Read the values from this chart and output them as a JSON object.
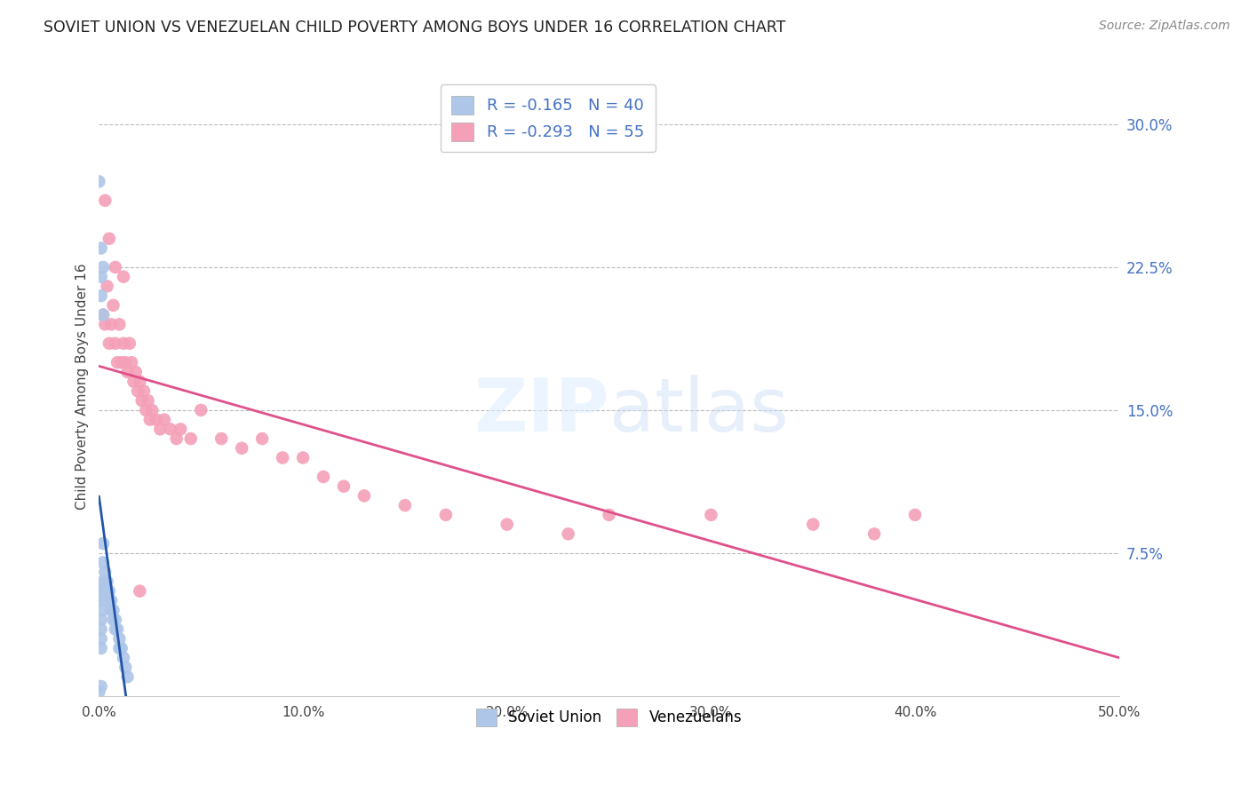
{
  "title": "SOVIET UNION VS VENEZUELAN CHILD POVERTY AMONG BOYS UNDER 16 CORRELATION CHART",
  "source": "Source: ZipAtlas.com",
  "ylabel": "Child Poverty Among Boys Under 16",
  "xlim": [
    0.0,
    0.5
  ],
  "ylim": [
    0.0,
    0.325
  ],
  "xticks": [
    0.0,
    0.1,
    0.2,
    0.3,
    0.4,
    0.5
  ],
  "xticklabels": [
    "0.0%",
    "10.0%",
    "20.0%",
    "30.0%",
    "40.0%",
    "50.0%"
  ],
  "yticks_right": [
    0.075,
    0.15,
    0.225,
    0.3
  ],
  "yticklabels_right": [
    "7.5%",
    "15.0%",
    "22.5%",
    "30.0%"
  ],
  "soviet_R": -0.165,
  "soviet_N": 40,
  "venezuelan_R": -0.293,
  "venezuelan_N": 55,
  "soviet_color": "#aec6e8",
  "venezuelan_color": "#f4a0b8",
  "soviet_line_color": "#2255aa",
  "venezuelan_line_color": "#e0508a",
  "background_color": "#ffffff",
  "grid_color": "#bbbbbb",
  "soviet_x": [
    0.001,
    0.001,
    0.001,
    0.001,
    0.001,
    0.002,
    0.002,
    0.002,
    0.002,
    0.002,
    0.003,
    0.003,
    0.003,
    0.003,
    0.004,
    0.004,
    0.004,
    0.005,
    0.005,
    0.006,
    0.006,
    0.007,
    0.007,
    0.008,
    0.008,
    0.009,
    0.01,
    0.01,
    0.011,
    0.012,
    0.013,
    0.014,
    0.0,
    0.001,
    0.002,
    0.001,
    0.001,
    0.002,
    0.001,
    0.0
  ],
  "soviet_y": [
    0.03,
    0.04,
    0.035,
    0.025,
    0.05,
    0.08,
    0.06,
    0.055,
    0.045,
    0.07,
    0.065,
    0.06,
    0.055,
    0.05,
    0.06,
    0.055,
    0.05,
    0.055,
    0.05,
    0.05,
    0.045,
    0.045,
    0.04,
    0.04,
    0.035,
    0.035,
    0.03,
    0.025,
    0.025,
    0.02,
    0.015,
    0.01,
    0.27,
    0.235,
    0.225,
    0.22,
    0.21,
    0.2,
    0.005,
    0.002
  ],
  "venezuelan_x": [
    0.002,
    0.003,
    0.004,
    0.005,
    0.006,
    0.007,
    0.008,
    0.009,
    0.01,
    0.011,
    0.012,
    0.013,
    0.014,
    0.015,
    0.016,
    0.017,
    0.018,
    0.019,
    0.02,
    0.021,
    0.022,
    0.023,
    0.024,
    0.025,
    0.026,
    0.028,
    0.03,
    0.032,
    0.035,
    0.038,
    0.04,
    0.045,
    0.05,
    0.06,
    0.07,
    0.08,
    0.09,
    0.1,
    0.11,
    0.12,
    0.13,
    0.15,
    0.17,
    0.2,
    0.23,
    0.25,
    0.3,
    0.35,
    0.38,
    0.4,
    0.003,
    0.005,
    0.008,
    0.012,
    0.02
  ],
  "venezuelan_y": [
    0.2,
    0.195,
    0.215,
    0.185,
    0.195,
    0.205,
    0.185,
    0.175,
    0.195,
    0.175,
    0.185,
    0.175,
    0.17,
    0.185,
    0.175,
    0.165,
    0.17,
    0.16,
    0.165,
    0.155,
    0.16,
    0.15,
    0.155,
    0.145,
    0.15,
    0.145,
    0.14,
    0.145,
    0.14,
    0.135,
    0.14,
    0.135,
    0.15,
    0.135,
    0.13,
    0.135,
    0.125,
    0.125,
    0.115,
    0.11,
    0.105,
    0.1,
    0.095,
    0.09,
    0.085,
    0.095,
    0.095,
    0.09,
    0.085,
    0.095,
    0.26,
    0.24,
    0.225,
    0.22,
    0.055
  ]
}
